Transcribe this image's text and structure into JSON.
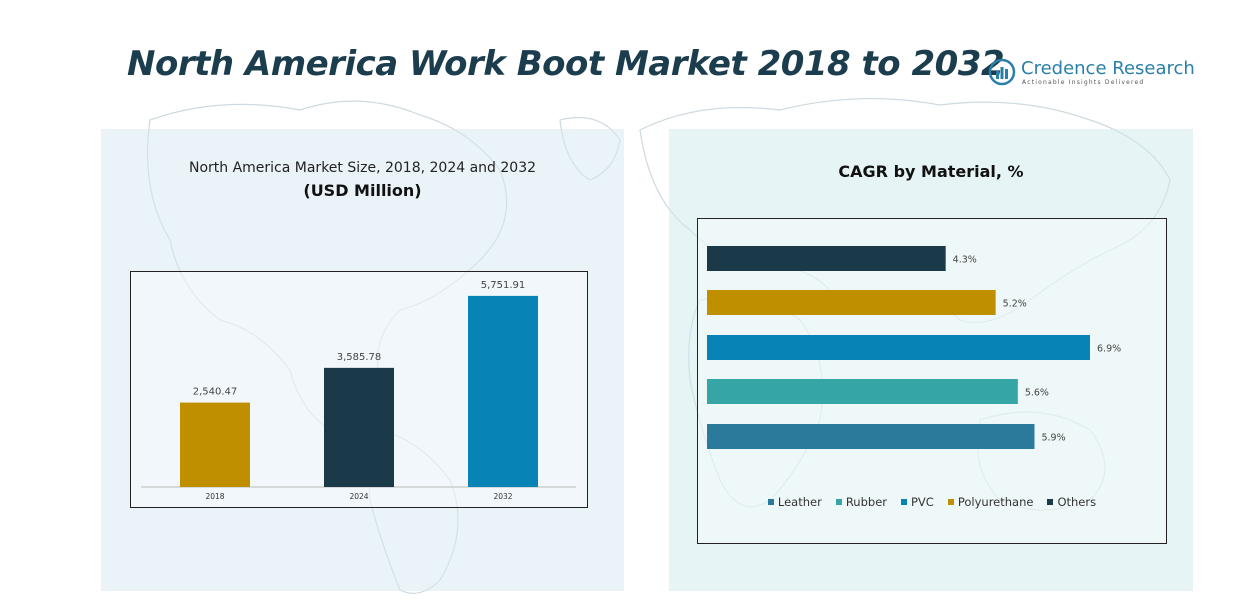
{
  "header": {
    "title": "North America Work Boot Market 2018 to 2032",
    "logo_name": "Credence Research",
    "logo_tagline": "Actionable Insights Delivered"
  },
  "left_panel": {
    "subtitle_line1": "North America Market Size, 2018, 2024 and 2032",
    "subtitle_line2": "(USD Million)"
  },
  "right_panel": {
    "title": "CAGR by Material, %"
  },
  "colors": {
    "title": "#1c3d4d",
    "gold": "#bf8f00",
    "dark_navy": "#1a3a4a",
    "blue": "#0784b5",
    "teal": "#36a5a6",
    "steel_blue": "#2c7a9b"
  },
  "chart_data": [
    {
      "type": "bar",
      "title": "North America Market Size, 2018, 2024 and 2032",
      "subtitle": "(USD Million)",
      "categories": [
        "2018",
        "2024",
        "2032"
      ],
      "values": [
        2540.47,
        3585.78,
        5751.91
      ],
      "value_labels": [
        "2,540.47",
        "3,585.78",
        "5,751.91"
      ],
      "colors": [
        "#bf8f00",
        "#1a3a4a",
        "#0784b5"
      ],
      "ylim": [
        0,
        6200
      ],
      "grid": false
    },
    {
      "type": "bar",
      "orientation": "horizontal",
      "title": "CAGR by Material, %",
      "categories": [
        "Others",
        "Polyurethane",
        "PVC",
        "Rubber",
        "Leather"
      ],
      "values": [
        4.3,
        5.2,
        6.9,
        5.6,
        5.9
      ],
      "value_labels": [
        "4.3%",
        "5.2%",
        "6.9%",
        "5.6%",
        "5.9%"
      ],
      "colors": [
        "#1a3a4a",
        "#bf8f00",
        "#0784b5",
        "#36a5a6",
        "#2c7a9b"
      ],
      "xlim": [
        0,
        7.2
      ],
      "legend": {
        "position": "bottom",
        "entries": [
          {
            "label": "Leather",
            "color": "#2c7a9b"
          },
          {
            "label": "Rubber",
            "color": "#36a5a6"
          },
          {
            "label": "PVC",
            "color": "#0784b5"
          },
          {
            "label": "Polyurethane",
            "color": "#bf8f00"
          },
          {
            "label": "Others",
            "color": "#1a3a4a"
          }
        ]
      },
      "grid": false
    }
  ]
}
